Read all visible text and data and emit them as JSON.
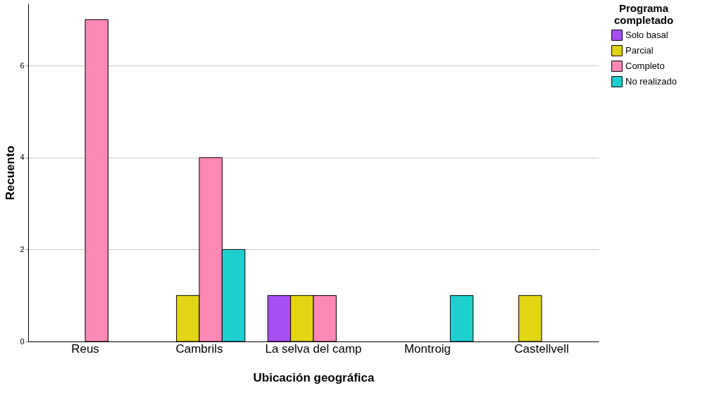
{
  "chart_data": {
    "type": "bar",
    "xlabel": "Ubicación geográfica",
    "ylabel": "Recuento",
    "legend_title": "Programa completado",
    "categories": [
      "Reus",
      "Cambrils",
      "La selva del camp",
      "Montroig",
      "Castellvell"
    ],
    "series": [
      {
        "name": "Solo basal",
        "color": "#a64ff2",
        "values": [
          null,
          null,
          1,
          null,
          null
        ]
      },
      {
        "name": "Parcial",
        "color": "#e2d514",
        "values": [
          null,
          1,
          1,
          null,
          1
        ]
      },
      {
        "name": "Completo",
        "color": "#fc88b6",
        "values": [
          7,
          4,
          1,
          null,
          null
        ]
      },
      {
        "name": "No realizado",
        "color": "#1ecfcf",
        "values": [
          null,
          2,
          null,
          1,
          null
        ]
      }
    ],
    "ylim": [
      0,
      7.35
    ],
    "yticks": [
      0,
      2,
      4,
      6
    ],
    "grid": "y",
    "legend": "top right"
  }
}
